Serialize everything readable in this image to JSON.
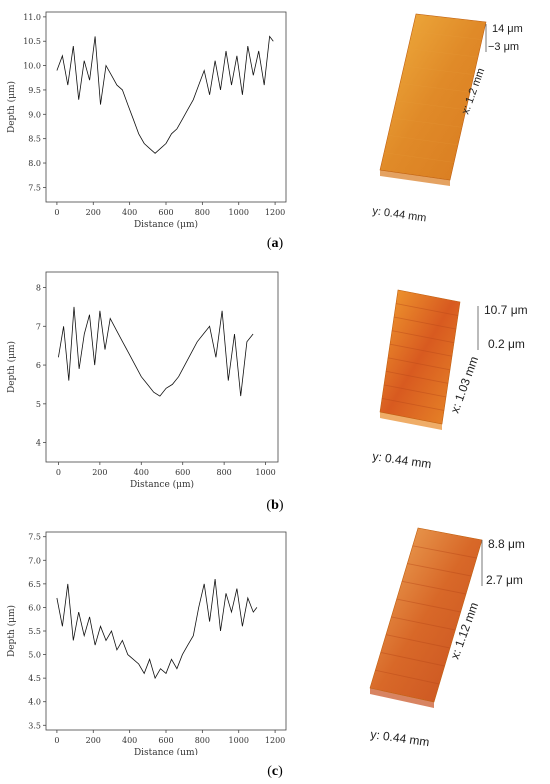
{
  "chart_data": [
    {
      "type": "line",
      "caption_letter": "a",
      "xlabel": "Distance (μm)",
      "ylabel": "Depth (μm)",
      "xlim": [
        -60,
        1260
      ],
      "ylim": [
        7.2,
        11.1
      ],
      "xticks": [
        0,
        200,
        400,
        600,
        800,
        1000,
        1200
      ],
      "yticks": [
        7.5,
        8.0,
        8.5,
        9.0,
        9.5,
        10.0,
        10.5,
        11.0
      ],
      "ytick_decimals": 1,
      "x": [
        0,
        30,
        60,
        90,
        120,
        150,
        180,
        210,
        240,
        270,
        300,
        330,
        360,
        390,
        420,
        450,
        480,
        510,
        540,
        570,
        600,
        630,
        660,
        690,
        720,
        750,
        780,
        810,
        840,
        870,
        900,
        930,
        960,
        990,
        1020,
        1050,
        1080,
        1110,
        1140,
        1170,
        1190
      ],
      "y": [
        9.9,
        10.2,
        9.6,
        10.4,
        9.3,
        10.1,
        9.7,
        10.6,
        9.2,
        10.0,
        9.8,
        9.6,
        9.5,
        9.2,
        8.9,
        8.6,
        8.4,
        8.3,
        8.2,
        8.3,
        8.4,
        8.6,
        8.7,
        8.9,
        9.1,
        9.3,
        9.6,
        9.9,
        9.4,
        10.1,
        9.5,
        10.3,
        9.6,
        10.2,
        9.4,
        10.4,
        9.8,
        10.3,
        9.6,
        10.6,
        10.5
      ],
      "surface": {
        "top_label": "14 μm",
        "bottom_label": "−3 μm",
        "x_label": "x: 1.2 mm",
        "y_label": "y: 0.44 mm",
        "colors": [
          "#f0b040",
          "#e08a28",
          "#d87a20"
        ]
      }
    },
    {
      "type": "line",
      "caption_letter": "b",
      "xlabel": "Distance (μm)",
      "ylabel": "Depth (μm)",
      "xlim": [
        -60,
        1060
      ],
      "ylim": [
        3.5,
        8.4
      ],
      "xticks": [
        0,
        200,
        400,
        600,
        800,
        1000
      ],
      "yticks": [
        4,
        5,
        6,
        7,
        8
      ],
      "ytick_decimals": 0,
      "x": [
        0,
        25,
        50,
        75,
        100,
        125,
        150,
        175,
        200,
        225,
        250,
        280,
        310,
        340,
        370,
        400,
        430,
        460,
        490,
        520,
        550,
        580,
        610,
        640,
        670,
        700,
        730,
        760,
        790,
        820,
        850,
        880,
        910,
        940
      ],
      "y": [
        6.2,
        7.0,
        5.6,
        7.5,
        5.9,
        6.8,
        7.3,
        6.0,
        7.4,
        6.4,
        7.2,
        6.9,
        6.6,
        6.3,
        6.0,
        5.7,
        5.5,
        5.3,
        5.2,
        5.4,
        5.5,
        5.7,
        6.0,
        6.3,
        6.6,
        6.8,
        7.0,
        6.2,
        7.4,
        5.6,
        6.8,
        5.2,
        6.6,
        6.8
      ],
      "surface": {
        "top_label": "10.7 μm",
        "bottom_label": "0.2 μm",
        "x_label": "x: 1.03 mm",
        "y_label": "y: 0.44 mm",
        "colors": [
          "#f2a030",
          "#d85a20",
          "#e88a28"
        ]
      }
    },
    {
      "type": "line",
      "caption_letter": "c",
      "xlabel": "Distance (μm)",
      "ylabel": "Depth (μm)",
      "xlim": [
        -60,
        1260
      ],
      "ylim": [
        3.4,
        7.6
      ],
      "xticks": [
        0,
        200,
        400,
        600,
        800,
        1000,
        1200
      ],
      "yticks": [
        3.5,
        4.0,
        4.5,
        5.0,
        5.5,
        6.0,
        6.5,
        7.0,
        7.5
      ],
      "ytick_decimals": 1,
      "x": [
        0,
        30,
        60,
        90,
        120,
        150,
        180,
        210,
        240,
        270,
        300,
        330,
        360,
        390,
        420,
        450,
        480,
        510,
        540,
        570,
        600,
        630,
        660,
        690,
        720,
        750,
        780,
        810,
        840,
        870,
        900,
        930,
        960,
        990,
        1020,
        1050,
        1080,
        1100
      ],
      "y": [
        6.2,
        5.6,
        6.5,
        5.3,
        5.9,
        5.4,
        5.8,
        5.2,
        5.6,
        5.3,
        5.5,
        5.1,
        5.3,
        5.0,
        4.9,
        4.8,
        4.6,
        4.9,
        4.5,
        4.7,
        4.6,
        4.9,
        4.7,
        5.0,
        5.2,
        5.4,
        6.0,
        6.5,
        5.7,
        6.6,
        5.5,
        6.3,
        5.9,
        6.4,
        5.6,
        6.2,
        5.9,
        6.0
      ],
      "surface": {
        "top_label": "8.8 μm",
        "bottom_label": "2.7 μm",
        "x_label": "x: 1.12 mm",
        "y_label": "y: 0.44 mm",
        "colors": [
          "#f0b060",
          "#d86828",
          "#c85020"
        ]
      }
    }
  ]
}
